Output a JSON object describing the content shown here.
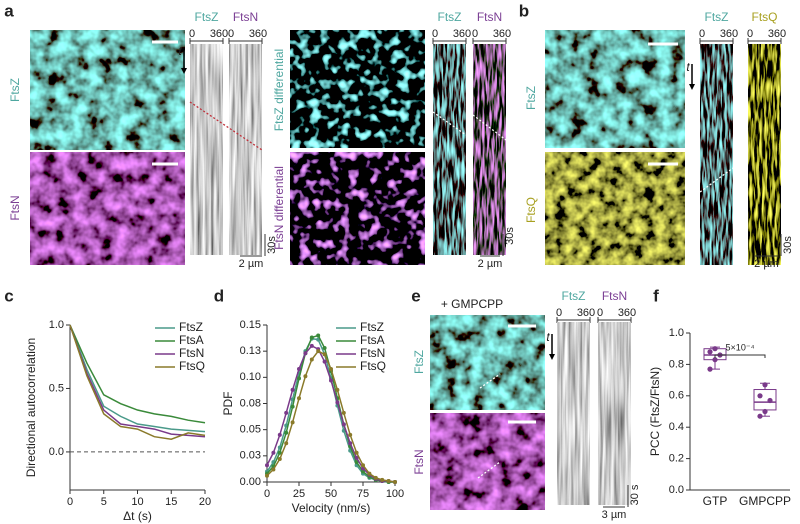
{
  "panel_labels": [
    "a",
    "b",
    "c",
    "d",
    "e",
    "f"
  ],
  "panel_a": {
    "images": [
      "FtsZ",
      "FtsN"
    ],
    "kymographs": [
      {
        "label": "FtsZ",
        "range": [
          0,
          360
        ]
      },
      {
        "label": "FtsN",
        "range": [
          0,
          360
        ]
      }
    ],
    "differential_images": [
      "FtsZ differential",
      "FtsN differential"
    ],
    "differential_kymographs": [
      {
        "label": "FtsZ",
        "range": [
          0,
          360
        ]
      },
      {
        "label": "FtsN",
        "range": [
          0,
          360
        ]
      }
    ],
    "time_label": "t",
    "scale_x": "2 µm",
    "scale_t": "30s",
    "diff_scale_x": "2 µm",
    "diff_scale_t": "30s"
  },
  "panel_b": {
    "images": [
      "FtsZ",
      "FtsQ"
    ],
    "kymographs": [
      {
        "label": "FtsZ",
        "range": [
          0,
          360
        ]
      },
      {
        "label": "FtsQ",
        "range": [
          0,
          360
        ]
      }
    ],
    "time_label": "t",
    "scale_x": "2 µm",
    "scale_t": "30s"
  },
  "panel_e": {
    "condition": "+ GMPCPP",
    "images": [
      "FtsZ",
      "FtsN"
    ],
    "kymographs": [
      {
        "label": "FtsZ",
        "range": [
          0,
          360
        ]
      },
      {
        "label": "FtsN",
        "range": [
          0,
          360
        ]
      }
    ],
    "time_label": "t",
    "scale_x": "3 µm",
    "scale_t": "30 s"
  },
  "chart_data": [
    {
      "type": "line",
      "xlabel": "Δt (s)",
      "ylabel": "Directional autocorrelation",
      "x": [
        0,
        2.5,
        5,
        7.5,
        10,
        12.5,
        15,
        17.5,
        20
      ],
      "series": [
        {
          "name": "FtsZ",
          "color": "#4a9a8a",
          "values": [
            1.0,
            0.65,
            0.36,
            0.28,
            0.22,
            0.2,
            0.18,
            0.17,
            0.16
          ]
        },
        {
          "name": "FtsA",
          "color": "#3a8a3a",
          "values": [
            1.0,
            0.7,
            0.45,
            0.38,
            0.33,
            0.3,
            0.28,
            0.25,
            0.23
          ]
        },
        {
          "name": "FtsN",
          "color": "#7a3a8a",
          "values": [
            1.0,
            0.62,
            0.33,
            0.22,
            0.2,
            0.18,
            0.14,
            0.13,
            0.12
          ]
        },
        {
          "name": "FtsQ",
          "color": "#8a7a2a",
          "values": [
            1.0,
            0.6,
            0.3,
            0.2,
            0.18,
            0.12,
            0.1,
            0.15,
            0.13
          ]
        }
      ],
      "xlim": [
        0,
        20
      ],
      "ylim": [
        -0.3,
        1
      ],
      "xticks": [
        0,
        5,
        10,
        15,
        20
      ],
      "yticks": [
        {
          "value": 0,
          "label": "0.0"
        },
        0.5,
        {
          "value": 1,
          "label": "1.0"
        }
      ],
      "hline": 0,
      "legend": "upper right"
    },
    {
      "type": "line",
      "markers": true,
      "xlabel": "Velocity (nm/s)",
      "ylabel": "PDF",
      "x": [
        0,
        5,
        10,
        15,
        20,
        25,
        30,
        35,
        40,
        45,
        50,
        55,
        60,
        65,
        70,
        75,
        80,
        85,
        90,
        95,
        100
      ],
      "series": [
        {
          "name": "FtsZ",
          "color": "#4a9a8a",
          "values": [
            0.01,
            0.019,
            0.033,
            0.054,
            0.079,
            0.104,
            0.125,
            0.137,
            0.136,
            0.122,
            0.099,
            0.073,
            0.049,
            0.03,
            0.016,
            0.008,
            0.004,
            0.002,
            0.001,
            0,
            0
          ]
        },
        {
          "name": "FtsA",
          "color": "#3a8a3a",
          "values": [
            0.008,
            0.015,
            0.028,
            0.047,
            0.072,
            0.099,
            0.123,
            0.138,
            0.14,
            0.128,
            0.106,
            0.08,
            0.055,
            0.034,
            0.019,
            0.01,
            0.005,
            0.002,
            0.001,
            0,
            0
          ]
        },
        {
          "name": "FtsN",
          "color": "#7a3a8a",
          "values": [
            0.016,
            0.028,
            0.045,
            0.066,
            0.088,
            0.108,
            0.123,
            0.13,
            0.127,
            0.115,
            0.097,
            0.076,
            0.055,
            0.037,
            0.023,
            0.013,
            0.007,
            0.003,
            0.001,
            0.001,
            0
          ]
        },
        {
          "name": "FtsQ",
          "color": "#8a7a2a",
          "values": [
            0.006,
            0.012,
            0.022,
            0.037,
            0.057,
            0.08,
            0.101,
            0.117,
            0.125,
            0.122,
            0.108,
            0.088,
            0.066,
            0.045,
            0.028,
            0.016,
            0.008,
            0.004,
            0.002,
            0.001,
            0
          ]
        }
      ],
      "xlim": [
        0,
        100
      ],
      "ylim": [
        0,
        0.15
      ],
      "xticks": [
        0,
        25,
        50,
        75,
        100
      ],
      "yticks": [
        {
          "value": 0,
          "label": "0.00"
        },
        {
          "value": 0.025,
          "label": "0.03"
        },
        0.05,
        {
          "value": 0.075,
          "label": "0.08"
        },
        {
          "value": 0.1,
          "label": "0.10"
        },
        {
          "value": 0.125,
          "label": "0.13"
        },
        0.15
      ],
      "legend": "upper right"
    },
    {
      "type": "box",
      "ylabel": "PCC (FtsZ/FtsN)",
      "categories": [
        "GTP",
        "GMPCPP"
      ],
      "color": "#7a3a8a",
      "boxes": [
        {
          "min": 0.77,
          "q1": 0.83,
          "median": 0.86,
          "q3": 0.9,
          "max": 0.91,
          "points": [
            0.77,
            0.83,
            0.86,
            0.88,
            0.9
          ]
        },
        {
          "min": 0.47,
          "q1": 0.51,
          "median": 0.56,
          "q3": 0.64,
          "max": 0.68,
          "points": [
            0.47,
            0.5,
            0.57,
            0.6,
            0.67
          ]
        }
      ],
      "ylim": [
        0,
        1
      ],
      "yticks": [
        {
          "value": 0,
          "label": "0.0"
        },
        0.2,
        0.4,
        0.6,
        0.8,
        {
          "value": 1,
          "label": "1.0"
        }
      ],
      "annotation": "5×10⁻⁴"
    }
  ]
}
